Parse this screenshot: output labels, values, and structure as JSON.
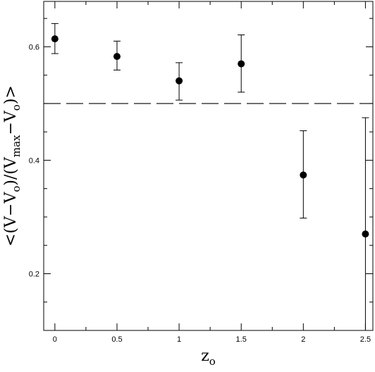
{
  "chart_data": {
    "type": "scatter",
    "xlabel": {
      "main": "z",
      "sub": "o"
    },
    "ylabel": {
      "parts": [
        {
          "t": "<(V−V"
        },
        {
          "t": "o",
          "sub": true
        },
        {
          "t": ")/(V"
        },
        {
          "t": "max",
          "sub": true
        },
        {
          "t": "−V"
        },
        {
          "t": "o",
          "sub": true
        },
        {
          "t": ")>"
        }
      ]
    },
    "xlim": [
      -0.09,
      2.56
    ],
    "ylim": [
      0.1,
      0.68
    ],
    "xticks": [
      {
        "value": 0,
        "label": "0"
      },
      {
        "value": 0.5,
        "label": "0.5"
      },
      {
        "value": 1,
        "label": "1"
      },
      {
        "value": 1.5,
        "label": "1.5"
      },
      {
        "value": 2,
        "label": "2"
      },
      {
        "value": 2.5,
        "label": "2.5"
      }
    ],
    "xminor": [
      0.25,
      0.75,
      1.25,
      1.75,
      2.25
    ],
    "yticks": [
      {
        "value": 0.2,
        "label": "0.2"
      },
      {
        "value": 0.4,
        "label": "0.4"
      },
      {
        "value": 0.6,
        "label": "0.6"
      }
    ],
    "yminor": [
      0.15,
      0.25,
      0.3,
      0.35,
      0.45,
      0.5,
      0.55,
      0.65
    ],
    "reference_line": {
      "y": 0.5,
      "style": "dashed"
    },
    "points": [
      {
        "x": 0,
        "y": 0.614,
        "err_low": 0.026,
        "err_high": 0.027
      },
      {
        "x": 0.5,
        "y": 0.583,
        "err_low": 0.024,
        "err_high": 0.027
      },
      {
        "x": 1,
        "y": 0.54,
        "err_low": 0.034,
        "err_high": 0.032
      },
      {
        "x": 1.5,
        "y": 0.57,
        "err_low": 0.05,
        "err_high": 0.051
      },
      {
        "x": 2,
        "y": 0.374,
        "err_low": 0.076,
        "err_high": 0.078
      },
      {
        "x": 2.5,
        "y": 0.27,
        "err_low": 0.17,
        "err_high": 0.205
      }
    ],
    "grid": false
  }
}
